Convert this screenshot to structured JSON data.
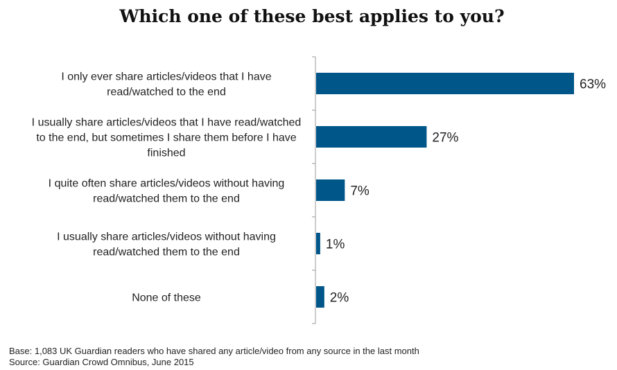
{
  "chart_data": {
    "type": "bar",
    "orientation": "horizontal",
    "title": "Which one of these best applies to you?",
    "categories": [
      [
        "I only ever share articles/videos that I have",
        "read/watched to the end"
      ],
      [
        "I usually share articles/videos that I have read/watched",
        "to the end, but sometimes I share them before I have",
        "finished"
      ],
      [
        "I quite often share articles/videos without having",
        "read/watched them to the end"
      ],
      [
        "I usually share articles/videos without having",
        "read/watched them to the end"
      ],
      [
        "None of these"
      ]
    ],
    "values": [
      63,
      27,
      7,
      1,
      2
    ],
    "value_labels": [
      "63%",
      "27%",
      "7%",
      "1%",
      "2%"
    ],
    "xlim": [
      0,
      63
    ],
    "grid": false,
    "bar_color": "#005689"
  },
  "footer": {
    "base": "Base: 1,083 UK Guardian readers who have shared any article/video from any source in the last month",
    "source": "Source: Guardian Crowd Omnibus, June 2015"
  }
}
